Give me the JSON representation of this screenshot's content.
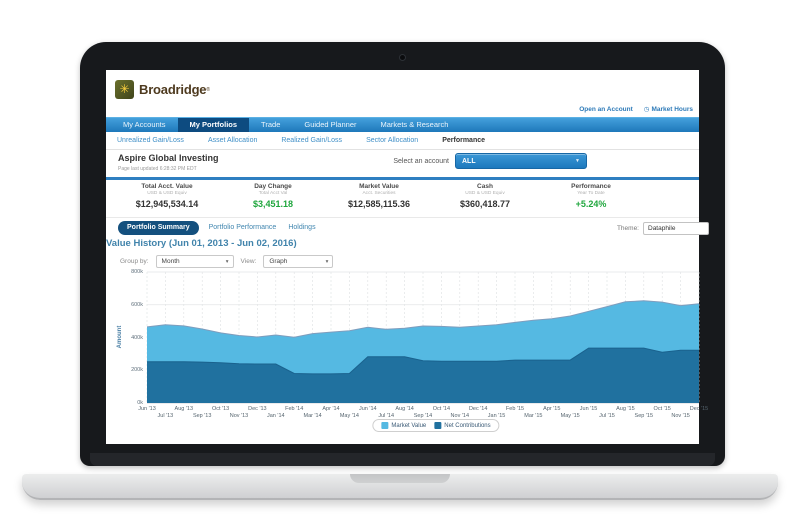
{
  "header": {
    "brand": "Broadridge",
    "brand_mark": "®",
    "links": [
      {
        "label": "Open an Account"
      },
      {
        "label": "Market Hours",
        "icon": "clock-icon"
      }
    ]
  },
  "icons": {
    "chevron_down": "▼",
    "select_caret": "▾",
    "clock": "◷",
    "logo_glyph": "✳"
  },
  "nav": {
    "items": [
      {
        "label": "My Accounts",
        "active": false
      },
      {
        "label": "My Portfolios",
        "active": true
      },
      {
        "label": "Trade",
        "active": false
      },
      {
        "label": "Guided Planner",
        "active": false
      },
      {
        "label": "Markets & Research",
        "active": false
      }
    ]
  },
  "subnav": {
    "items": [
      {
        "label": "Unrealized Gain/Loss",
        "active": false
      },
      {
        "label": "Asset Allocation",
        "active": false
      },
      {
        "label": "Realized Gain/Loss",
        "active": false
      },
      {
        "label": "Sector Allocation",
        "active": false
      },
      {
        "label": "Performance",
        "active": true
      }
    ]
  },
  "account": {
    "name": "Aspire Global Investing",
    "updated": "Page last updated 6:28:32 PM EDT",
    "select_label": "Select an account",
    "selected": "ALL"
  },
  "stats": [
    {
      "label": "Total Acct. Value",
      "sublabel": "USD & USD Equiv",
      "value": "$12,945,534.14",
      "color": "#333333"
    },
    {
      "label": "Day Change",
      "sublabel": "Total Acct Val",
      "value": "$3,451.18",
      "color": "#1fa63d"
    },
    {
      "label": "Market Value",
      "sublabel": "Acct. Securities",
      "value": "$12,585,115.36",
      "color": "#333333"
    },
    {
      "label": "Cash",
      "sublabel": "USD & USD Equiv",
      "value": "$360,418.77",
      "color": "#333333"
    },
    {
      "label": "Performance",
      "sublabel": "Year To Date",
      "value": "+5.24%",
      "color": "#1fa63d"
    }
  ],
  "tabs": {
    "items": [
      {
        "label": "Portfolio Summary",
        "active": true
      },
      {
        "label": "Portfolio Performance",
        "active": false
      },
      {
        "label": "Holdings",
        "active": false
      }
    ],
    "theme_label": "Theme:",
    "theme_value": "Dataphile"
  },
  "section": {
    "title": "Value History (Jun 01, 2013 - Jun 02, 2016)",
    "group_by_label": "Group by:",
    "group_by_value": "Month",
    "view_label": "View:",
    "view_value": "Graph"
  },
  "colors": {
    "nav_blue": "#1e78ba",
    "nav_active": "#0d4b80",
    "link_blue": "#3f8fc7",
    "rule_blue": "#2e7fc1",
    "positive_green": "#1fa63d",
    "brand_text": "#4e3a1f",
    "brand_gold": "#ffd23f"
  },
  "chart_data": {
    "type": "area",
    "title": "Value History (Jun 01, 2013 - Jun 02, 2016)",
    "xlabel": "",
    "ylabel": "Amount",
    "units": "thousands of USD",
    "ylim": [
      0,
      800
    ],
    "y_ticks": [
      "0k",
      "200k",
      "400k",
      "600k",
      "800k"
    ],
    "y_tick_values": [
      0,
      200,
      400,
      600,
      800
    ],
    "grid": true,
    "legend_position": "bottom",
    "x": [
      "Jun '13",
      "Jul '13",
      "Aug '13",
      "Sep '13",
      "Oct '13",
      "Nov '13",
      "Dec '13",
      "Jan '14",
      "Feb '14",
      "Mar '14",
      "Apr '14",
      "May '14",
      "Jun '14",
      "Jul '14",
      "Aug '14",
      "Sep '14",
      "Oct '14",
      "Nov '14",
      "Dec '14",
      "Jan '15",
      "Feb '15",
      "Mar '15",
      "Apr '15",
      "May '15",
      "Jun '15",
      "Jul '15",
      "Aug '15",
      "Sep '15",
      "Oct '15",
      "Nov '15",
      "Dec '15"
    ],
    "series": [
      {
        "name": "Market Value",
        "color": "#55b9e2",
        "edge": "#7f9dbd",
        "values": [
          465,
          478,
          471,
          452,
          428,
          412,
          403,
          415,
          402,
          424,
          433,
          441,
          462,
          450,
          456,
          470,
          468,
          462,
          470,
          478,
          492,
          505,
          514,
          531,
          560,
          589,
          618,
          624,
          616,
          595,
          606
        ]
      },
      {
        "name": "Net Contributions",
        "color": "#20719f",
        "edge": "#1a628e",
        "values": [
          252,
          252,
          252,
          250,
          246,
          240,
          238,
          238,
          180,
          178,
          178,
          180,
          282,
          282,
          282,
          258,
          255,
          255,
          255,
          255,
          262,
          262,
          262,
          262,
          335,
          335,
          335,
          335,
          310,
          322,
          322
        ]
      }
    ]
  }
}
